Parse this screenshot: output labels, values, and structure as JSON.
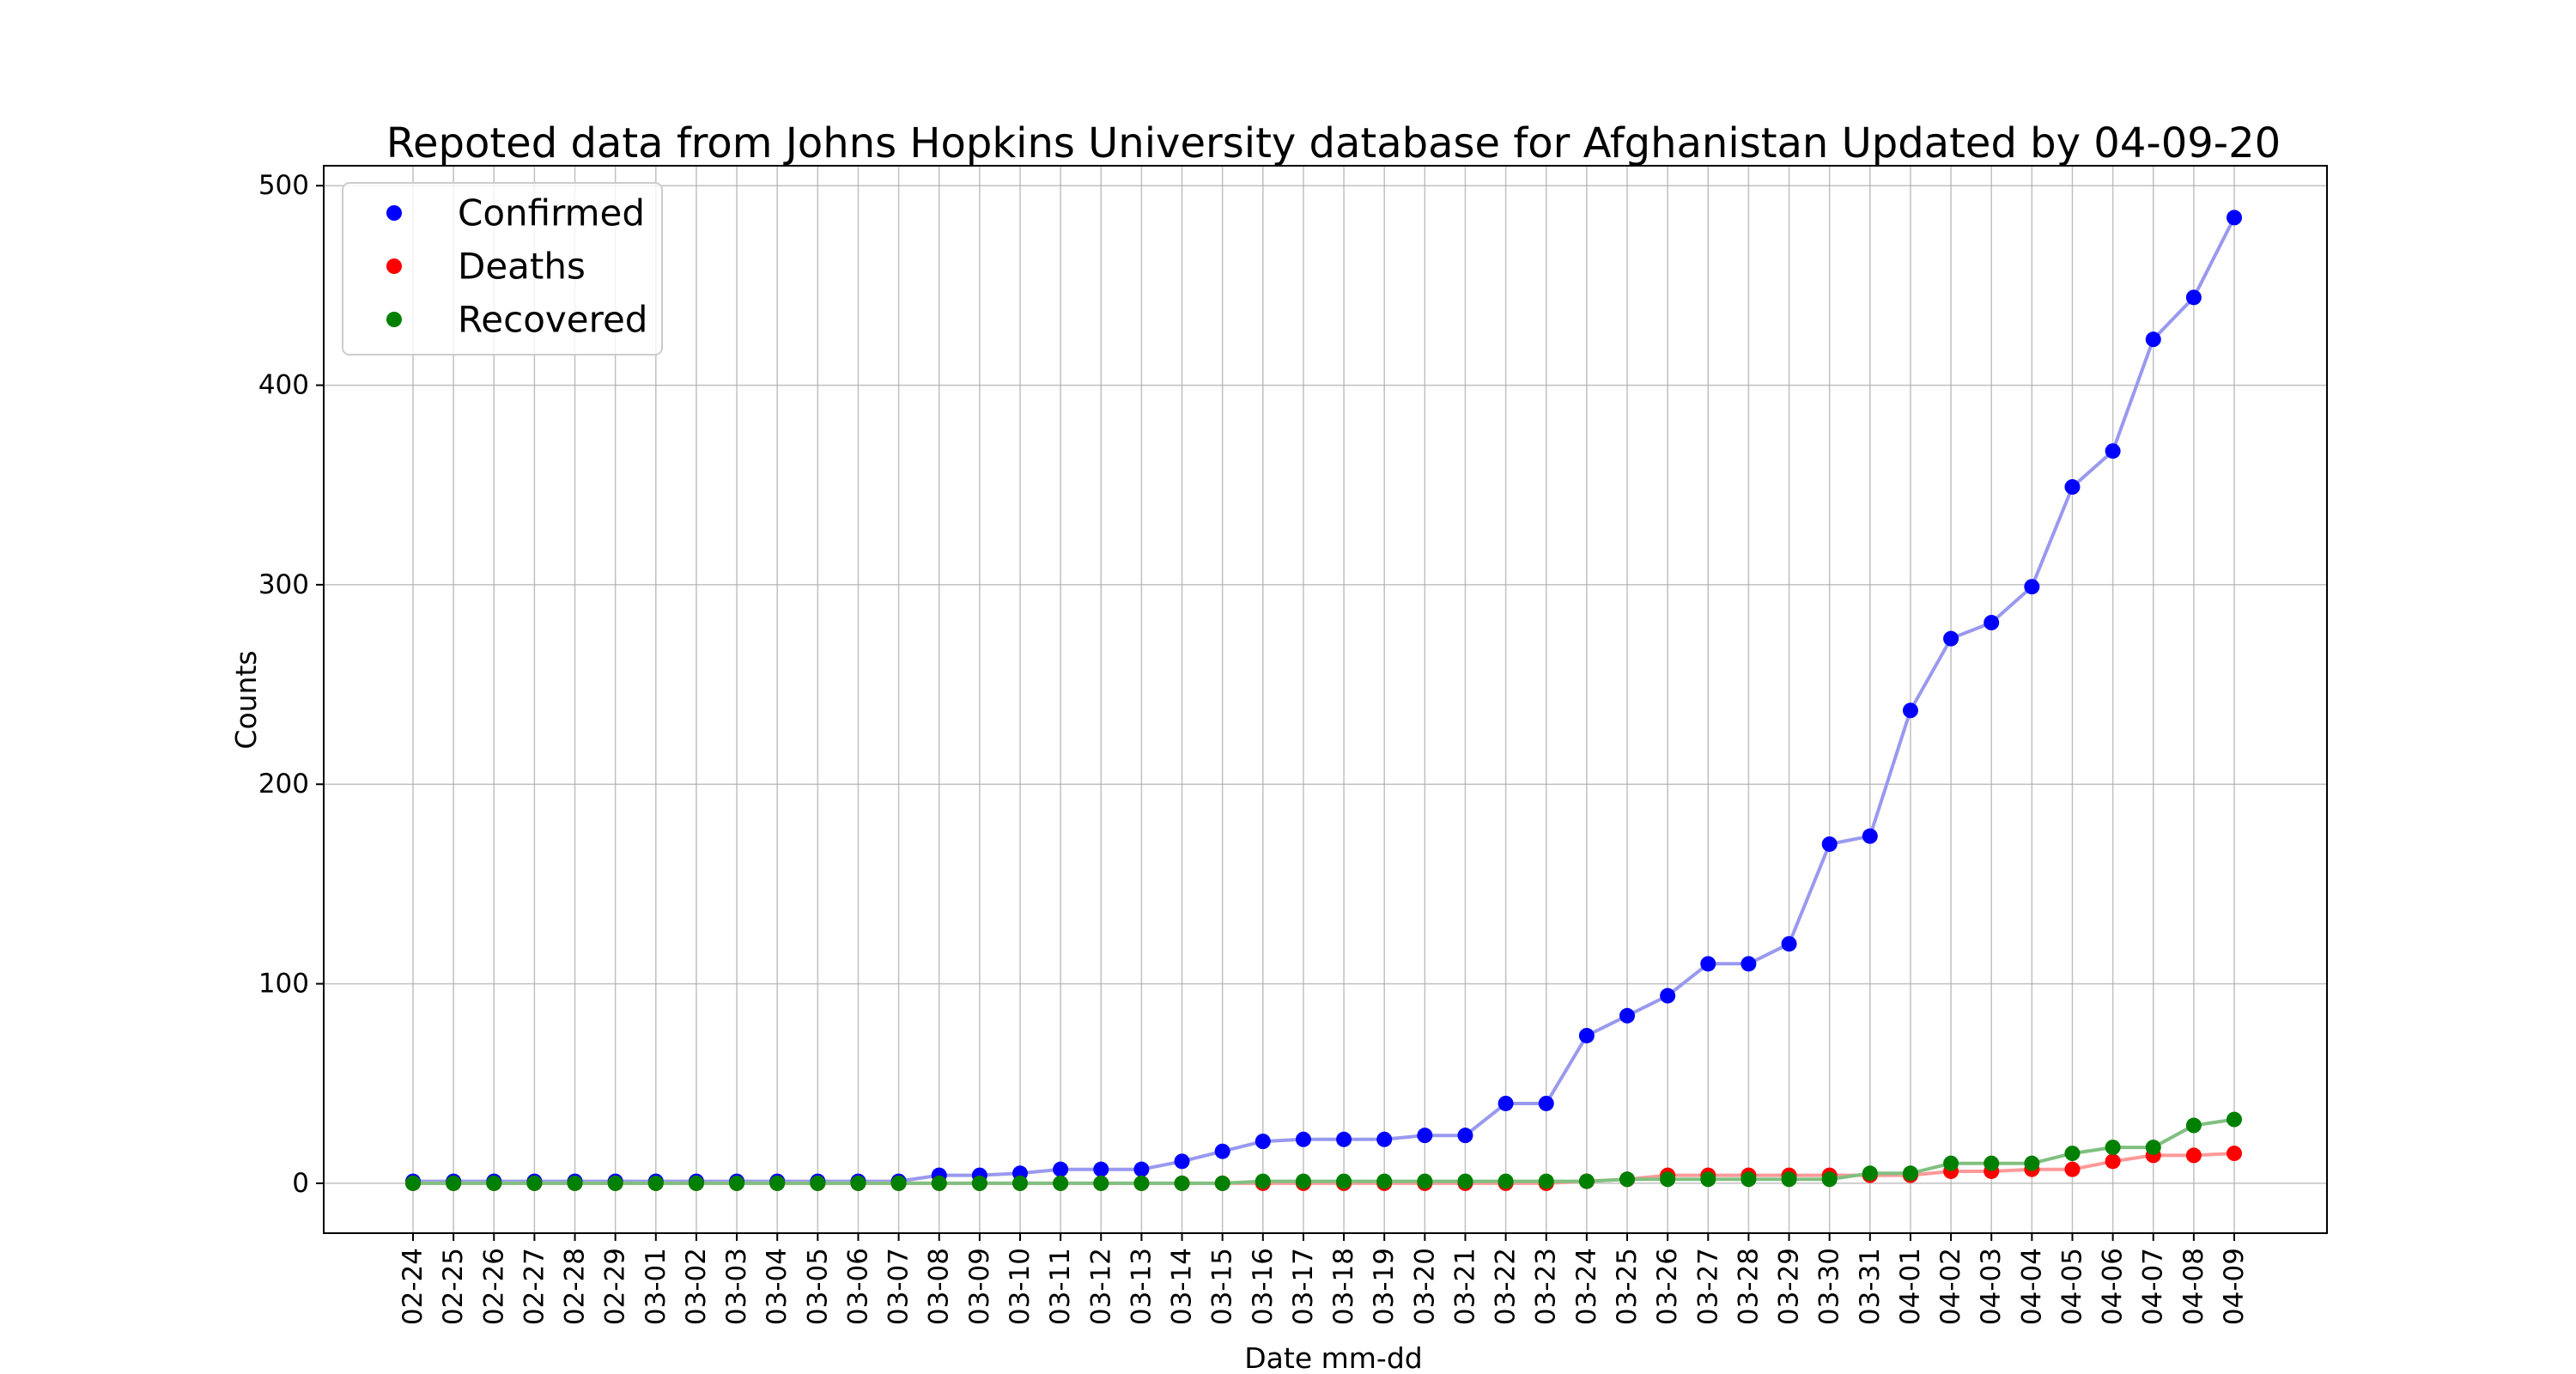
{
  "chart_data": {
    "type": "line",
    "title": "Repoted data from Johns Hopkins University database for Afghanistan Updated by 04-09-20",
    "xlabel": "Date mm-dd",
    "ylabel": "Counts",
    "ylim": [
      -25,
      510
    ],
    "yticks": [
      0,
      100,
      200,
      300,
      400,
      500
    ],
    "grid": true,
    "legend_position": "top-left",
    "x": [
      "02-24",
      "02-25",
      "02-26",
      "02-27",
      "02-28",
      "02-29",
      "03-01",
      "03-02",
      "03-03",
      "03-04",
      "03-05",
      "03-06",
      "03-07",
      "03-08",
      "03-09",
      "03-10",
      "03-11",
      "03-12",
      "03-13",
      "03-14",
      "03-15",
      "03-16",
      "03-17",
      "03-18",
      "03-19",
      "03-20",
      "03-21",
      "03-22",
      "03-23",
      "03-24",
      "03-25",
      "03-26",
      "03-27",
      "03-28",
      "03-29",
      "03-30",
      "03-31",
      "04-01",
      "04-02",
      "04-03",
      "04-04",
      "04-05",
      "04-06",
      "04-07",
      "04-08",
      "04-09"
    ],
    "series": [
      {
        "name": "Confirmed",
        "color": "#0000ff",
        "line_color": "#9999f0",
        "values": [
          1,
          1,
          1,
          1,
          1,
          1,
          1,
          1,
          1,
          1,
          1,
          1,
          1,
          4,
          4,
          5,
          7,
          7,
          7,
          11,
          16,
          21,
          22,
          22,
          22,
          24,
          24,
          40,
          40,
          74,
          84,
          94,
          110,
          110,
          120,
          170,
          174,
          237,
          273,
          281,
          299,
          349,
          367,
          423,
          444,
          484
        ]
      },
      {
        "name": "Deaths",
        "color": "#ff0000",
        "line_color": "#ff9999",
        "values": [
          0,
          0,
          0,
          0,
          0,
          0,
          0,
          0,
          0,
          0,
          0,
          0,
          0,
          0,
          0,
          0,
          0,
          0,
          0,
          0,
          0,
          0,
          0,
          0,
          0,
          0,
          0,
          0,
          0,
          1,
          2,
          4,
          4,
          4,
          4,
          4,
          4,
          4,
          6,
          6,
          7,
          7,
          11,
          14,
          14,
          15
        ]
      },
      {
        "name": "Recovered",
        "color": "#008000",
        "line_color": "#80c080",
        "values": [
          0,
          0,
          0,
          0,
          0,
          0,
          0,
          0,
          0,
          0,
          0,
          0,
          0,
          0,
          0,
          0,
          0,
          0,
          0,
          0,
          0,
          1,
          1,
          1,
          1,
          1,
          1,
          1,
          1,
          1,
          2,
          2,
          2,
          2,
          2,
          2,
          5,
          5,
          10,
          10,
          10,
          15,
          18,
          18,
          29,
          32
        ]
      }
    ]
  }
}
